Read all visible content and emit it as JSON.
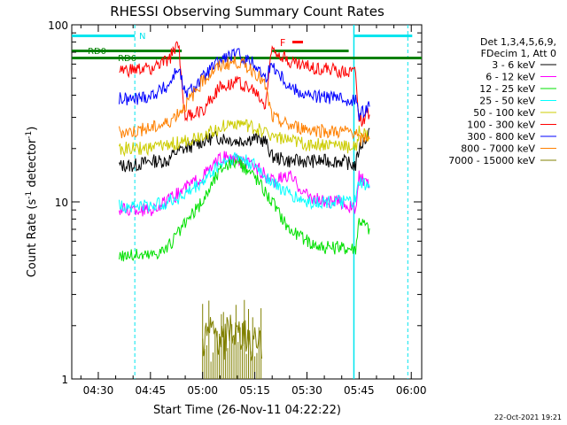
{
  "chart_data": {
    "type": "line",
    "title": "RHESSI Observing Summary Count Rates",
    "xlabel": "Start Time (26-Nov-11 04:22:22)",
    "ylabel_main": "Count Rate (s",
    "ylabel_exp1": "-1",
    "ylabel_mid": " detector",
    "ylabel_exp2": "-1",
    "ylabel_end": ")",
    "yscale": "log",
    "ylim": [
      1,
      100
    ],
    "xlim_minutes": [
      22.37,
      123
    ],
    "x_ticks": [
      {
        "m": 30,
        "label": "04:30"
      },
      {
        "m": 45,
        "label": "04:45"
      },
      {
        "m": 60,
        "label": "05:00"
      },
      {
        "m": 75,
        "label": "05:15"
      },
      {
        "m": 90,
        "label": "05:30"
      },
      {
        "m": 105,
        "label": "05:45"
      },
      {
        "m": 120,
        "label": "06:00"
      }
    ],
    "y_ticks": [
      {
        "v": 1,
        "label": "1"
      },
      {
        "v": 10,
        "label": "10"
      },
      {
        "v": 100,
        "label": "100"
      }
    ],
    "legend_header": [
      "Det 1,3,4,5,6,9,",
      "FDecim 1, Att 0"
    ],
    "legend_placement": "right",
    "annotations": {
      "night_label": "N",
      "flare_label": "F",
      "rd0_label": "RD0",
      "rd6_label": "RD6",
      "footer_date": "22-Oct-2021 19:21"
    },
    "colors": {
      "night": "#00e5ee",
      "flare": "#ff0000",
      "decim": "#008000"
    },
    "series": [
      {
        "name": "3 - 6 keV",
        "color": "#000000",
        "times": [
          36,
          38,
          40,
          45,
          50,
          52,
          55,
          60,
          63,
          66,
          70,
          75,
          78,
          80,
          85,
          90,
          95,
          100,
          104,
          105,
          108
        ],
        "values": [
          16,
          16,
          16,
          17,
          17,
          19,
          20,
          22,
          23,
          23,
          22,
          23,
          22,
          18,
          17,
          17,
          17,
          17,
          16,
          20,
          25
        ]
      },
      {
        "name": "6 - 12 keV",
        "color": "#ff00ff",
        "times": [
          36,
          40,
          45,
          50,
          55,
          60,
          63,
          66,
          70,
          75,
          80,
          85,
          90,
          95,
          100,
          104,
          105,
          108
        ],
        "values": [
          9,
          9,
          9,
          10,
          12,
          14,
          16,
          18,
          17,
          16,
          13,
          14,
          11,
          10,
          10,
          9,
          14,
          12
        ]
      },
      {
        "name": "12 - 25 keV",
        "color": "#00e000",
        "times": [
          36,
          40,
          45,
          50,
          55,
          60,
          63,
          66,
          70,
          75,
          80,
          85,
          90,
          95,
          100,
          104,
          105,
          108
        ],
        "values": [
          5,
          5,
          5,
          5.5,
          7.5,
          10,
          13,
          16,
          17,
          14,
          10,
          7,
          6,
          5.5,
          5.5,
          5.5,
          8,
          7
        ]
      },
      {
        "name": "25 - 50 keV",
        "color": "#00ffff",
        "times": [
          36,
          40,
          45,
          50,
          55,
          60,
          63,
          66,
          70,
          75,
          80,
          85,
          90,
          95,
          100,
          104,
          105,
          108
        ],
        "values": [
          9.5,
          9.5,
          9.5,
          10,
          11,
          13,
          15,
          17,
          18,
          16,
          13,
          11,
          10,
          10,
          10,
          10,
          13,
          12
        ]
      },
      {
        "name": "50 - 100 keV",
        "color": "#cccc00",
        "times": [
          36,
          40,
          45,
          50,
          55,
          60,
          63,
          66,
          70,
          75,
          80,
          85,
          90,
          95,
          100,
          104,
          105,
          108
        ],
        "values": [
          20,
          20,
          20,
          21,
          22,
          24,
          25,
          27,
          28,
          26,
          24,
          22,
          21,
          21,
          21,
          20,
          25,
          23
        ]
      },
      {
        "name": "100 - 300 keV",
        "color": "#ff0000",
        "times": [
          36,
          40,
          45,
          50,
          53,
          55,
          60,
          63,
          66,
          70,
          75,
          78,
          80,
          85,
          90,
          95,
          100,
          104,
          105,
          108
        ],
        "values": [
          55,
          55,
          57,
          62,
          80,
          30,
          33,
          40,
          46,
          48,
          42,
          35,
          75,
          62,
          58,
          56,
          55,
          55,
          28,
          32
        ]
      },
      {
        "name": "300 - 800 keV",
        "color": "#0000ff",
        "times": [
          36,
          40,
          45,
          50,
          53,
          55,
          60,
          63,
          66,
          70,
          75,
          78,
          80,
          85,
          90,
          95,
          100,
          104,
          105,
          108
        ],
        "values": [
          38,
          38,
          40,
          45,
          58,
          40,
          50,
          58,
          65,
          68,
          60,
          50,
          60,
          45,
          40,
          39,
          38,
          38,
          30,
          36
        ]
      },
      {
        "name": "800 - 7000 keV",
        "color": "#ff8000",
        "times": [
          36,
          40,
          45,
          50,
          55,
          60,
          63,
          66,
          70,
          75,
          78,
          80,
          85,
          90,
          95,
          100,
          104,
          105,
          108
        ],
        "values": [
          25,
          25,
          26,
          28,
          35,
          48,
          55,
          60,
          62,
          55,
          45,
          30,
          27,
          26,
          25,
          25,
          25,
          22,
          24
        ]
      },
      {
        "name": "7000 - 15000 keV",
        "color": "#808000",
        "times": [
          60,
          61,
          63,
          66,
          68,
          70,
          72,
          74,
          76,
          77
        ],
        "values": [
          1.6,
          1.7,
          1.8,
          1.6,
          1.9,
          1.7,
          1.8,
          1.6,
          1.7,
          1.5
        ]
      }
    ]
  }
}
